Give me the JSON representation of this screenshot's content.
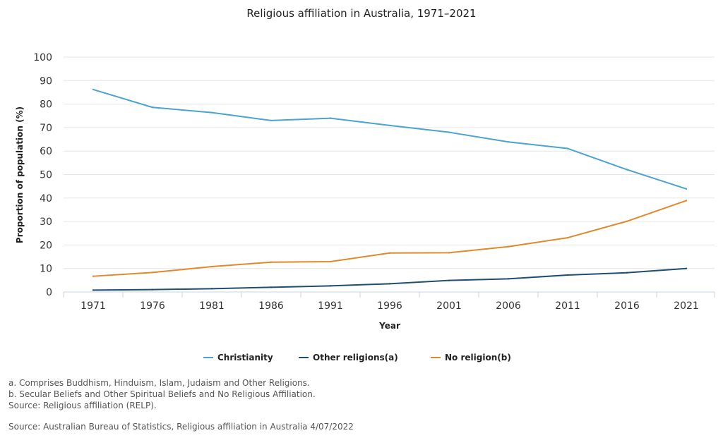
{
  "chart_data": {
    "type": "line",
    "title": "Religious affiliation in Australia, 1971–2021",
    "xlabel": "Year",
    "ylabel": "Proportion of population (%)",
    "categories": [
      "1971",
      "1976",
      "1981",
      "1986",
      "1991",
      "1996",
      "2001",
      "2006",
      "2011",
      "2016",
      "2021"
    ],
    "ylim": [
      0,
      100
    ],
    "yticks": [
      "0",
      "10",
      "20",
      "30",
      "40",
      "50",
      "60",
      "70",
      "80",
      "90",
      "100"
    ],
    "grid": true,
    "legend_position": "bottom",
    "series": [
      {
        "name": "Christianity",
        "color": "#4aa3d0",
        "values": [
          86.2,
          78.6,
          76.4,
          73.0,
          74.0,
          70.9,
          68.0,
          63.9,
          61.1,
          52.1,
          43.9
        ]
      },
      {
        "name": "Other religions(a)",
        "color": "#1f4e6e",
        "values": [
          0.8,
          1.0,
          1.4,
          2.0,
          2.6,
          3.5,
          4.9,
          5.6,
          7.2,
          8.2,
          10.0
        ]
      },
      {
        "name": "No religion(b)",
        "color": "#e0892a",
        "values": [
          6.7,
          8.3,
          10.8,
          12.7,
          12.9,
          16.6,
          16.7,
          19.3,
          23.1,
          30.1,
          38.9
        ]
      }
    ]
  },
  "notes": [
    "a. Comprises Buddhism, Hinduism, Islam, Judaism and Other Religions.",
    "b. Secular Beliefs and Other Spiritual Beliefs and No Religious Affiliation.",
    "Source: Religious affiliation (RELP)."
  ],
  "source": "Source: Australian Bureau of Statistics, Religious affiliation in Australia 4/07/2022"
}
